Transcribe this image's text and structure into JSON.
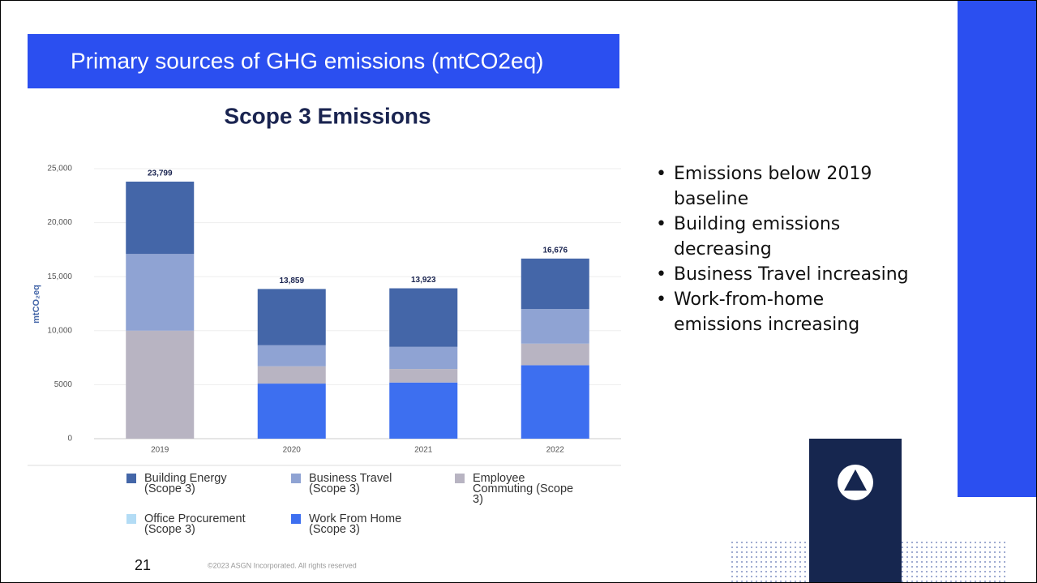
{
  "slide": {
    "heading": "Primary sources of GHG emissions (mtCO2eq)",
    "bullets": [
      "Emissions below 2019 baseline",
      "Building emissions decreasing",
      "Business Travel increasing",
      "Work-from-home emissions increasing"
    ],
    "page_number": "21",
    "footer": "©2023 ASGN Incorporated. All rights reserved"
  },
  "chart_data": {
    "type": "stacked_bar",
    "title": "Scope 3 Emissions",
    "y_label": "mtCO₂eq",
    "categories": [
      "2019",
      "2020",
      "2021",
      "2022"
    ],
    "series": [
      {
        "name": "Building Energy (Scope 3)",
        "color": "#4466a8",
        "values": [
          6699,
          5209,
          5423,
          4676
        ]
      },
      {
        "name": "Business Travel (Scope 3)",
        "color": "#8fa3d3",
        "values": [
          7100,
          1950,
          2050,
          3200
        ]
      },
      {
        "name": "Employee Commuting (Scope 3)",
        "color": "#b8b4c2",
        "values": [
          10000,
          1600,
          1250,
          2000
        ]
      },
      {
        "name": "Office Procurement (Scope 3)",
        "color": "#b3dcf5",
        "values": [
          0,
          0,
          0,
          0
        ]
      },
      {
        "name": "Work From Home (Scope 3)",
        "color": "#3d6ff0",
        "values": [
          0,
          5100,
          5200,
          6800
        ]
      }
    ],
    "totals": [
      23799,
      13859,
      13923,
      16676
    ],
    "total_labels": [
      "23,799",
      "13,859",
      "13,923",
      "16,676"
    ],
    "ylim": [
      0,
      25000
    ],
    "yticks": [
      0,
      5000,
      {
        "value": 10000,
        "label": "10,000"
      },
      {
        "value": 15000,
        "label": "15,000"
      },
      {
        "value": 20000,
        "label": "20,000"
      },
      {
        "value": 25000,
        "label": "25,000"
      }
    ],
    "grid": true
  }
}
